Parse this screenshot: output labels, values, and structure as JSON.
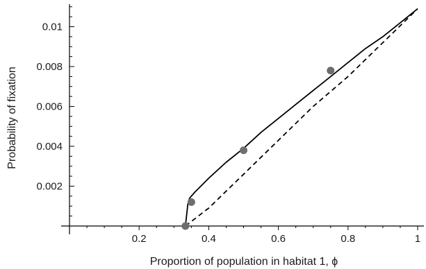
{
  "chart_data": {
    "type": "line",
    "title": "",
    "xlabel": "Proportion of population in habitat 1, ϕ",
    "ylabel": "Probability of fixation",
    "xlim": [
      0,
      1
    ],
    "ylim": [
      0,
      0.011
    ],
    "x_ticks": [
      0.2,
      0.4,
      0.6,
      0.8,
      1
    ],
    "x_tick_labels": [
      "0.2",
      "0.4",
      "0.6",
      "0.8",
      "1"
    ],
    "y_ticks": [
      0.002,
      0.004,
      0.006,
      0.008,
      0.01
    ],
    "y_tick_labels": [
      "0.002",
      "0.004",
      "0.006",
      "0.008",
      "0.01"
    ],
    "grid": false,
    "legend": "none",
    "series": [
      {
        "style": "solid",
        "color": "#000000",
        "x": [
          0.333,
          0.34,
          0.345,
          0.36,
          0.4,
          0.45,
          0.5,
          0.55,
          0.6,
          0.65,
          0.7,
          0.75,
          0.8,
          0.85,
          0.9,
          0.95,
          1.0
        ],
        "y": [
          0.0,
          0.0011,
          0.0014,
          0.0017,
          0.0024,
          0.0032,
          0.0039,
          0.0047,
          0.0054,
          0.0061,
          0.0068,
          0.0075,
          0.0082,
          0.0089,
          0.0095,
          0.0102,
          0.0109
        ]
      },
      {
        "style": "dashed",
        "color": "#000000",
        "x": [
          0.333,
          0.4,
          0.5,
          0.6,
          0.7,
          0.8,
          0.9,
          1.0
        ],
        "y": [
          0.0,
          0.0009,
          0.0026,
          0.0043,
          0.006,
          0.0075,
          0.0092,
          0.0109
        ]
      },
      {
        "style": "points",
        "color": "#6e6e6e",
        "x": [
          0.333,
          0.35,
          0.5,
          0.75
        ],
        "y": [
          0.0,
          0.0012,
          0.0038,
          0.0078
        ]
      }
    ]
  }
}
